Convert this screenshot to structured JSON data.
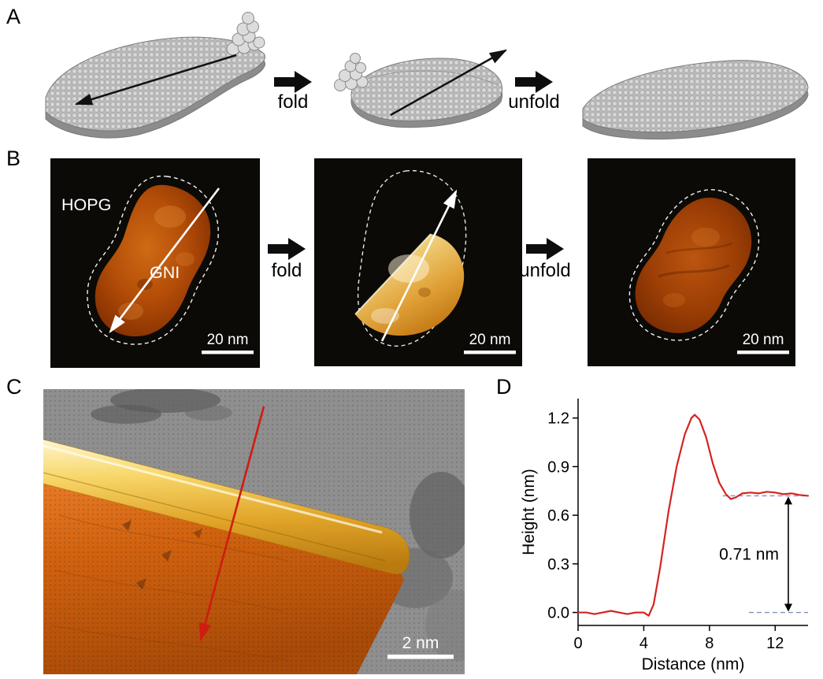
{
  "figure": {
    "panel_a": {
      "label": "A",
      "fold_arrow_label": "fold",
      "unfold_arrow_label": "unfold"
    },
    "panel_b": {
      "label": "B",
      "fold_arrow_label": "fold",
      "unfold_arrow_label": "unfold",
      "image_initial": {
        "substrate_label": "HOPG",
        "island_label": "GNI",
        "scale_bar_label": "20 nm"
      },
      "image_folded": {
        "scale_bar_label": "20 nm"
      },
      "image_unfolded": {
        "scale_bar_label": "20 nm"
      }
    },
    "panel_c": {
      "label": "C",
      "scale_bar_label": "2 nm"
    },
    "panel_d": {
      "label": "D"
    }
  },
  "colors": {
    "stm_background": "#0b0a07",
    "stm_island_orange": "#b34d08",
    "stm_fold_bright": "#f0cf7a",
    "schematic_gray": "#c2c2c2",
    "ridge_gold": "#f7d668",
    "profile_line_red": "#d42420",
    "reference_dash_blue": "#8091b4"
  },
  "chart_data": {
    "type": "line",
    "title": "",
    "xlabel": "Distance (nm)",
    "ylabel": "Height (nm)",
    "xlim": [
      0,
      14
    ],
    "ylim": [
      -0.08,
      1.32
    ],
    "xticks": [
      0,
      4,
      8,
      12
    ],
    "xtick_labels": [
      "0",
      "4",
      "8",
      "12"
    ],
    "yticks": [
      0,
      0.3,
      0.6,
      0.9,
      1.2
    ],
    "ytick_labels": [
      "0.0",
      "0.3",
      "0.6",
      "0.9",
      "1.2"
    ],
    "grid": false,
    "legend_position": "none",
    "series": [
      {
        "name": "height_profile",
        "color": "#d42420",
        "x": [
          0,
          0.5,
          1,
          1.5,
          2,
          2.5,
          3,
          3.5,
          4,
          4.3,
          4.6,
          5,
          5.5,
          6,
          6.5,
          6.9,
          7.1,
          7.4,
          7.8,
          8.2,
          8.6,
          9,
          9.3,
          9.6,
          10,
          10.5,
          11,
          11.5,
          12,
          12.5,
          13,
          13.5,
          14
        ],
        "y": [
          0,
          0,
          -0.01,
          0,
          0.01,
          0,
          -0.01,
          0,
          0,
          -0.02,
          0.05,
          0.28,
          0.62,
          0.9,
          1.1,
          1.2,
          1.22,
          1.19,
          1.08,
          0.92,
          0.8,
          0.73,
          0.7,
          0.71,
          0.735,
          0.74,
          0.735,
          0.745,
          0.74,
          0.73,
          0.735,
          0.725,
          0.72
        ]
      }
    ],
    "annotation": {
      "label": "0.71 nm",
      "upper_level_nm": 0.72,
      "lower_level_nm": 0.0,
      "upper_dash_x": [
        8.8,
        14
      ],
      "lower_dash_x": [
        10.4,
        14
      ],
      "arrow_x_nm": 12.8
    }
  }
}
